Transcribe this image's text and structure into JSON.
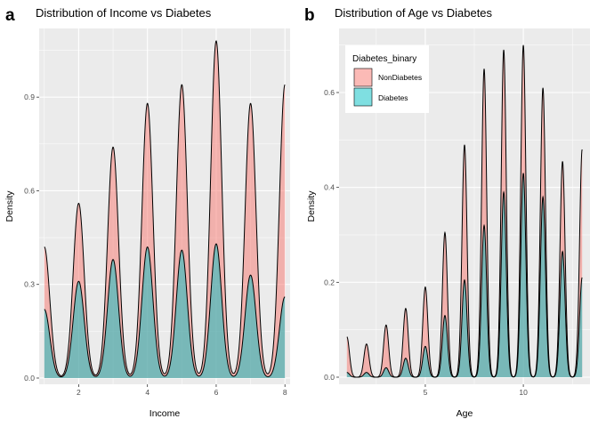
{
  "colors": {
    "NonDiabetes": "#F8766D",
    "Diabetes": "#00BFC4",
    "panel_bg": "#EBEBEB",
    "grid": "#FFFFFF"
  },
  "legend": {
    "title": "Diabetes_binary",
    "entries": [
      "NonDiabetes",
      "Diabetes"
    ],
    "placement": "top-left inside panel b"
  },
  "chart_data": [
    {
      "tag": "a",
      "type": "area",
      "title": "Distribution of Income vs Diabetes",
      "xlabel": "Income",
      "ylabel": "Density",
      "xlim": [
        0.85,
        8.15
      ],
      "ylim": [
        -0.02,
        1.12
      ],
      "xticks": [
        2,
        4,
        6,
        8
      ],
      "xtick_labels": [
        "2",
        "4",
        "6",
        "8"
      ],
      "yticks": [
        0.0,
        0.3,
        0.6,
        0.9
      ],
      "ytick_labels": [
        "0.0",
        "0.3",
        "0.6",
        "0.9"
      ],
      "grid": true,
      "peak_width": 0.16,
      "series": [
        {
          "name": "NonDiabetes",
          "peaks_x": [
            1,
            2,
            3,
            4,
            5,
            6,
            7,
            8
          ],
          "peaks_y": [
            0.42,
            0.56,
            0.74,
            0.88,
            0.94,
            1.08,
            0.88,
            0.94
          ]
        },
        {
          "name": "Diabetes",
          "peaks_x": [
            1,
            2,
            3,
            4,
            5,
            6,
            7,
            8
          ],
          "peaks_y": [
            0.22,
            0.31,
            0.38,
            0.42,
            0.41,
            0.43,
            0.33,
            0.26
          ]
        }
      ]
    },
    {
      "tag": "b",
      "type": "area",
      "title": "Distribution of Age vs Diabetes",
      "xlabel": "Age",
      "ylabel": "Density",
      "xlim": [
        0.6,
        13.4
      ],
      "ylim": [
        -0.015,
        0.735
      ],
      "xticks": [
        5,
        10
      ],
      "xtick_labels": [
        "5",
        "10"
      ],
      "yticks": [
        0.0,
        0.2,
        0.4,
        0.6
      ],
      "ytick_labels": [
        "0.0",
        "0.2",
        "0.4",
        "0.6"
      ],
      "grid": true,
      "peak_width": 0.13,
      "series": [
        {
          "name": "NonDiabetes",
          "peaks_x": [
            1,
            2,
            3,
            4,
            5,
            6,
            7,
            8,
            9,
            10,
            11,
            12,
            13
          ],
          "peaks_y": [
            0.085,
            0.07,
            0.11,
            0.145,
            0.19,
            0.305,
            0.49,
            0.65,
            0.69,
            0.7,
            0.61,
            0.455,
            0.48
          ]
        },
        {
          "name": "Diabetes",
          "peaks_x": [
            1,
            2,
            3,
            4,
            5,
            6,
            7,
            8,
            9,
            10,
            11,
            12,
            13
          ],
          "peaks_y": [
            0.01,
            0.01,
            0.02,
            0.04,
            0.065,
            0.13,
            0.205,
            0.32,
            0.39,
            0.43,
            0.38,
            0.265,
            0.21
          ]
        }
      ]
    }
  ]
}
